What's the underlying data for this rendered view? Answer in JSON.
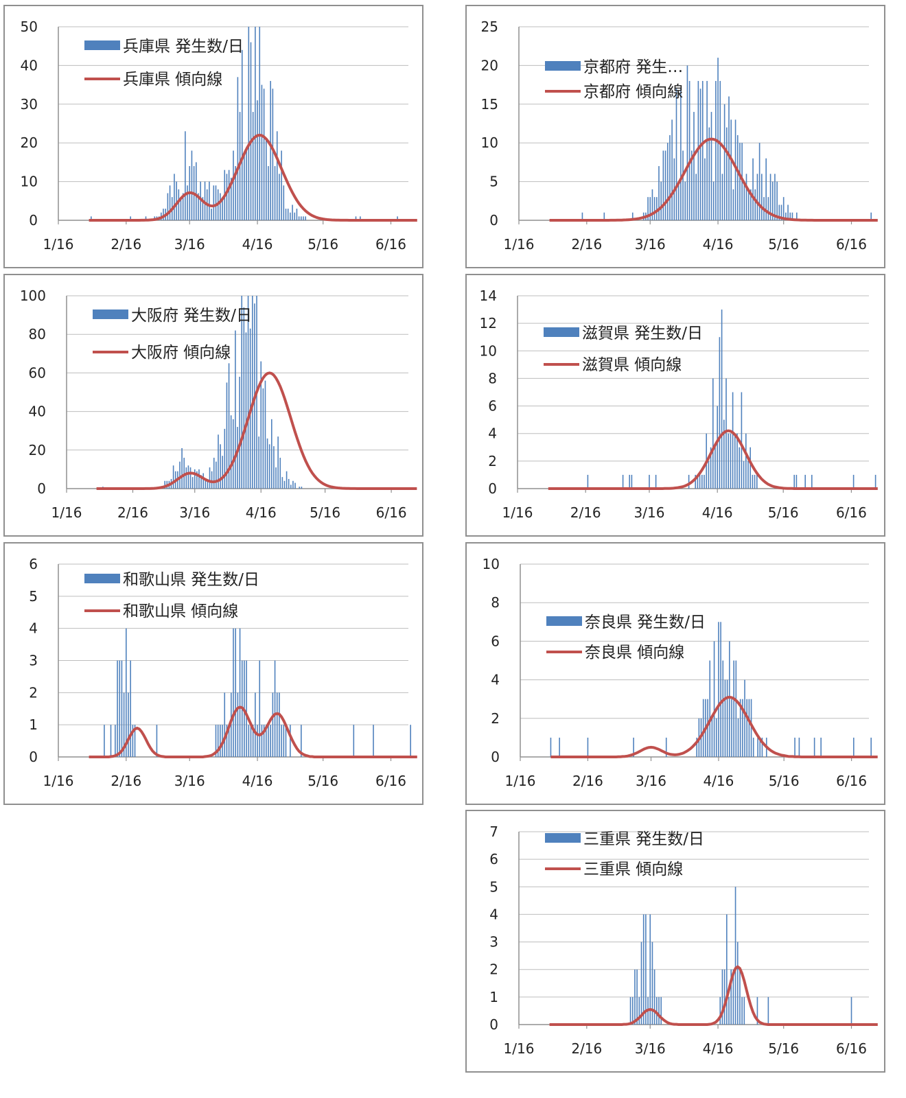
{
  "colors": {
    "bar": "#4f81bd",
    "line": "#c0504d",
    "grid": "#bdbdbd",
    "axis": "#8f8f8f"
  },
  "chart_data": [
    {
      "type": "bar",
      "x_ticks": [
        "1/16",
        "2/16",
        "3/16",
        "4/16",
        "5/16",
        "6/16"
      ],
      "ylim": [
        0,
        50
      ],
      "y_ticks": [
        0,
        10,
        20,
        30,
        40,
        50
      ],
      "grid": true,
      "legend_position": "top-left",
      "series": [
        {
          "name": "兵庫県 発生数/日",
          "type": "bar",
          "x": [],
          "values": []
        },
        {
          "name": "兵庫県 傾向線",
          "type": "line",
          "x": [],
          "values": []
        }
      ]
    },
    {
      "type": "bar",
      "x_ticks": [
        "1/16",
        "2/16",
        "3/16",
        "4/16",
        "5/16",
        "6/16"
      ],
      "ylim": [
        0,
        25
      ],
      "y_ticks": [
        0,
        5,
        10,
        15,
        20,
        25
      ],
      "grid": true,
      "legend_position": "top-left",
      "series": [
        {
          "name": "京都府 発生…",
          "type": "bar",
          "x": [],
          "values": []
        },
        {
          "name": "京都府 傾向線",
          "type": "line",
          "x": [],
          "values": []
        }
      ]
    },
    {
      "type": "bar",
      "x_ticks": [
        "1/16",
        "2/16",
        "3/16",
        "4/16",
        "5/16",
        "6/16"
      ],
      "ylim": [
        0,
        100
      ],
      "y_ticks": [
        0,
        20,
        40,
        60,
        80,
        100
      ],
      "grid": true,
      "legend_position": "top-left",
      "series": [
        {
          "name": "大阪府 発生数/日",
          "type": "bar",
          "x": [],
          "values": []
        },
        {
          "name": "大阪府 傾向線",
          "type": "line",
          "x": [],
          "values": []
        }
      ]
    },
    {
      "type": "bar",
      "x_ticks": [
        "1/16",
        "2/16",
        "3/16",
        "4/16",
        "5/16",
        "6/16"
      ],
      "ylim": [
        0,
        14
      ],
      "y_ticks": [
        0,
        2,
        4,
        6,
        8,
        10,
        12,
        14
      ],
      "grid": true,
      "legend_position": "top-left",
      "series": [
        {
          "name": "滋賀県 発生数/日",
          "type": "bar",
          "x": [],
          "values": []
        },
        {
          "name": "滋賀県 傾向線",
          "type": "line",
          "x": [],
          "values": []
        }
      ]
    },
    {
      "type": "bar",
      "x_ticks": [
        "1/16",
        "2/16",
        "3/16",
        "4/16",
        "5/16",
        "6/16"
      ],
      "ylim": [
        0,
        6
      ],
      "y_ticks": [
        0,
        1,
        2,
        3,
        4,
        5,
        6
      ],
      "grid": true,
      "legend_position": "top-left",
      "series": [
        {
          "name": "和歌山県 発生数/日",
          "type": "bar",
          "x": [],
          "values": []
        },
        {
          "name": "和歌山県 傾向線",
          "type": "line",
          "x": [],
          "values": []
        }
      ]
    },
    {
      "type": "bar",
      "x_ticks": [
        "1/16",
        "2/16",
        "3/16",
        "4/16",
        "5/16",
        "6/16"
      ],
      "ylim": [
        0,
        10
      ],
      "y_ticks": [
        0,
        2,
        4,
        6,
        8,
        10
      ],
      "grid": true,
      "legend_position": "top-left",
      "series": [
        {
          "name": "奈良県 発生数/日",
          "type": "bar",
          "x": [],
          "values": []
        },
        {
          "name": "奈良県 傾向線",
          "type": "line",
          "x": [],
          "values": []
        }
      ]
    },
    {
      "type": "bar",
      "x_ticks": [
        "1/16",
        "2/16",
        "3/16",
        "4/16",
        "5/16",
        "6/16"
      ],
      "ylim": [
        0,
        7
      ],
      "y_ticks": [
        0,
        1,
        2,
        3,
        4,
        5,
        6,
        7
      ],
      "grid": true,
      "legend_position": "top-left",
      "series": [
        {
          "name": "三重県 発生数/日",
          "type": "bar",
          "x": [],
          "values": []
        },
        {
          "name": "三重県 傾向線",
          "type": "line",
          "x": [],
          "values": []
        }
      ]
    }
  ]
}
